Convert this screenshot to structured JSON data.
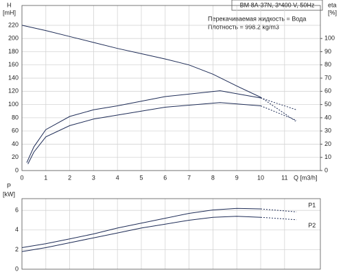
{
  "chart_data": [
    {
      "type": "line",
      "title": "BM 8A-37N, 3*400 V, 50Hz",
      "annotations": [
        "Перекачиваемая жидкость = Вода",
        "Плотность = 998.2 kg/m3"
      ],
      "y_label": [
        "H",
        "[mH]"
      ],
      "y2_label": [
        "eta",
        "[%]"
      ],
      "x_label": "Q [m3/h]",
      "xlim": [
        0,
        12.5
      ],
      "xticks": [
        0,
        1,
        2,
        3,
        4,
        5,
        6,
        7,
        8,
        9,
        10,
        11
      ],
      "ylim": [
        0,
        250
      ],
      "yticks": [
        0,
        20,
        40,
        60,
        80,
        100,
        120,
        140,
        160,
        180,
        200,
        220
      ],
      "y2lim": [
        0,
        125
      ],
      "y2ticks": [
        0,
        10,
        20,
        30,
        40,
        50,
        60,
        70,
        80,
        90,
        100
      ],
      "grid": true,
      "dashed_from": 10,
      "series": [
        {
          "color": "#1c2a55",
          "x": [
            0,
            1,
            2,
            3,
            4,
            5,
            6,
            7,
            8,
            9,
            10,
            11.5
          ],
          "values": [
            220,
            212,
            203,
            194,
            185,
            177,
            169,
            160,
            146,
            128,
            111,
            74
          ]
        },
        {
          "color": "#1c2a55",
          "axis": "y2",
          "x": [
            0.2,
            0.5,
            1,
            2,
            3,
            4,
            6,
            8.3,
            10,
            11.5
          ],
          "values": [
            6,
            18,
            31,
            41,
            46,
            49,
            56,
            60.4,
            55,
            46
          ]
        },
        {
          "color": "#1c2a55",
          "axis": "y2",
          "x": [
            0.25,
            0.5,
            1,
            2,
            3,
            4,
            6,
            8.3,
            10,
            11.5
          ],
          "values": [
            5,
            14,
            25.5,
            34,
            39,
            42,
            48,
            51.5,
            49,
            38
          ]
        }
      ]
    },
    {
      "type": "line",
      "y_label": [
        "P",
        "[kW]"
      ],
      "xlim": [
        0,
        12.5
      ],
      "xticks": [
        0,
        1,
        2,
        3,
        4,
        5,
        6,
        7,
        8,
        9,
        10,
        11
      ],
      "ylim": [
        0,
        7.2
      ],
      "yticks": [
        0,
        2,
        4,
        6
      ],
      "grid": true,
      "dashed_from": 10,
      "series": [
        {
          "name": "P1",
          "color": "#1c2a55",
          "x": [
            0,
            1,
            2,
            3,
            4,
            5,
            6,
            7,
            8,
            9,
            10,
            11.5
          ],
          "values": [
            2.2,
            2.6,
            3.1,
            3.6,
            4.2,
            4.7,
            5.2,
            5.7,
            6.05,
            6.2,
            6.15,
            5.85
          ]
        },
        {
          "name": "P2",
          "color": "#1c2a55",
          "x": [
            0,
            1,
            2,
            3,
            4,
            5,
            6,
            7,
            8,
            9,
            10,
            11.5
          ],
          "values": [
            1.8,
            2.2,
            2.7,
            3.2,
            3.7,
            4.2,
            4.6,
            5.0,
            5.3,
            5.4,
            5.3,
            5.05
          ]
        }
      ]
    }
  ]
}
